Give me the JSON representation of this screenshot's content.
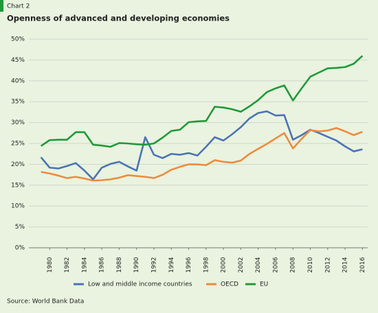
{
  "chart_data": {
    "type": "line",
    "label": "Chart 2",
    "title": "Openness of advanced and developing economies",
    "source": "Source: World Bank Data",
    "x": [
      1979,
      1980,
      1981,
      1982,
      1983,
      1984,
      1985,
      1986,
      1987,
      1988,
      1989,
      1990,
      1991,
      1992,
      1993,
      1994,
      1995,
      1996,
      1997,
      1998,
      1999,
      2000,
      2001,
      2002,
      2003,
      2004,
      2005,
      2006,
      2007,
      2008,
      2009,
      2010,
      2011,
      2012,
      2013,
      2014,
      2015,
      2016
    ],
    "xlim": [
      1978,
      2017
    ],
    "xticks": [
      1980,
      1982,
      1984,
      1986,
      1988,
      1990,
      1992,
      1994,
      1996,
      1998,
      2000,
      2002,
      2004,
      2006,
      2008,
      2010,
      2012,
      2014,
      2016
    ],
    "ylim": [
      0,
      50
    ],
    "yticks": [
      {
        "value": 0,
        "label": "0%"
      },
      {
        "value": 5,
        "label": "5%"
      },
      {
        "value": 10,
        "label": "10%"
      },
      {
        "value": 15,
        "label": "15%"
      },
      {
        "value": 20,
        "label": "20%"
      },
      {
        "value": 25,
        "label": "25%"
      },
      {
        "value": 30,
        "label": "30%"
      },
      {
        "value": 35,
        "label": "35%"
      },
      {
        "value": 40,
        "label": "40%"
      },
      {
        "value": 45,
        "label": "45%"
      },
      {
        "value": 50,
        "label": "50%"
      }
    ],
    "grid": true,
    "legend": "bottom",
    "series": [
      {
        "name": "Low and middle income countries",
        "color": "#4a73b8",
        "values": [
          21.7,
          19.2,
          19.0,
          19.6,
          20.3,
          18.5,
          16.4,
          19.2,
          20.1,
          20.6,
          19.5,
          18.5,
          26.5,
          22.3,
          21.5,
          22.5,
          22.3,
          22.7,
          22.1,
          24.2,
          26.5,
          25.7,
          27.2,
          28.9,
          31.0,
          32.3,
          32.7,
          31.7,
          31.8,
          25.9,
          27.0,
          28.3,
          27.5,
          26.6,
          25.7,
          24.3,
          23.1,
          23.6
        ]
      },
      {
        "name": "OECD",
        "color": "#f08a3c",
        "values": [
          18.2,
          17.8,
          17.3,
          16.7,
          17.0,
          16.6,
          16.1,
          16.2,
          16.4,
          16.8,
          17.4,
          17.2,
          17.0,
          16.7,
          17.5,
          18.7,
          19.4,
          20.0,
          20.0,
          19.8,
          21.0,
          20.6,
          20.4,
          20.9,
          22.5,
          23.7,
          24.9,
          26.2,
          27.5,
          23.8,
          26.1,
          28.2,
          27.9,
          28.1,
          28.7,
          27.9,
          27.0,
          27.8
        ]
      },
      {
        "name": "EU",
        "color": "#1e9a3a",
        "values": [
          24.4,
          25.8,
          25.9,
          25.9,
          27.7,
          27.7,
          24.7,
          24.5,
          24.2,
          25.1,
          25.0,
          24.8,
          24.7,
          25.0,
          26.4,
          28.0,
          28.3,
          30.1,
          30.3,
          30.4,
          33.8,
          33.6,
          33.2,
          32.6,
          33.9,
          35.4,
          37.3,
          38.2,
          38.9,
          35.3,
          38.2,
          41.0,
          42.0,
          43.0,
          43.1,
          43.3,
          44.1,
          46.0
        ]
      }
    ]
  }
}
